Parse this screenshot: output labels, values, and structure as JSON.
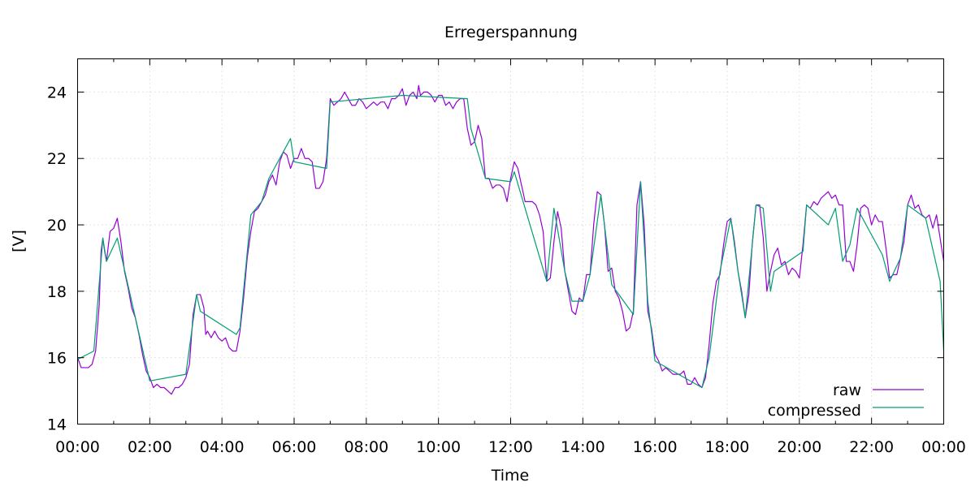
{
  "chart_data": {
    "type": "line",
    "title": "Erregerspannung",
    "xlabel": "Time",
    "ylabel": "[V]",
    "xlim": [
      0,
      24
    ],
    "ylim": [
      14,
      25
    ],
    "x_ticks": [
      {
        "value": 0,
        "label": "00:00"
      },
      {
        "value": 2,
        "label": "02:00"
      },
      {
        "value": 4,
        "label": "04:00"
      },
      {
        "value": 6,
        "label": "06:00"
      },
      {
        "value": 8,
        "label": "08:00"
      },
      {
        "value": 10,
        "label": "10:00"
      },
      {
        "value": 12,
        "label": "12:00"
      },
      {
        "value": 14,
        "label": "14:00"
      },
      {
        "value": 16,
        "label": "16:00"
      },
      {
        "value": 18,
        "label": "18:00"
      },
      {
        "value": 20,
        "label": "20:00"
      },
      {
        "value": 22,
        "label": "22:00"
      },
      {
        "value": 24,
        "label": "00:00"
      }
    ],
    "y_ticks": [
      {
        "value": 14,
        "label": "14"
      },
      {
        "value": 16,
        "label": "16"
      },
      {
        "value": 18,
        "label": "18"
      },
      {
        "value": 20,
        "label": "20"
      },
      {
        "value": 22,
        "label": "22"
      },
      {
        "value": 24,
        "label": "24"
      }
    ],
    "grid": true,
    "legend_position": "bottom-right",
    "series": [
      {
        "name": "raw",
        "color": "#9400d3",
        "points": [
          [
            0.0,
            16.0
          ],
          [
            0.1,
            15.7
          ],
          [
            0.2,
            15.7
          ],
          [
            0.3,
            15.7
          ],
          [
            0.4,
            15.8
          ],
          [
            0.5,
            16.2
          ],
          [
            0.6,
            17.6
          ],
          [
            0.65,
            19.2
          ],
          [
            0.7,
            19.6
          ],
          [
            0.75,
            19.2
          ],
          [
            0.8,
            18.9
          ],
          [
            0.9,
            19.8
          ],
          [
            1.0,
            19.9
          ],
          [
            1.1,
            20.2
          ],
          [
            1.2,
            19.5
          ],
          [
            1.3,
            18.6
          ],
          [
            1.4,
            18.1
          ],
          [
            1.5,
            17.5
          ],
          [
            1.6,
            17.2
          ],
          [
            1.7,
            16.7
          ],
          [
            1.8,
            16.1
          ],
          [
            1.9,
            15.6
          ],
          [
            2.0,
            15.4
          ],
          [
            2.1,
            15.1
          ],
          [
            2.2,
            15.2
          ],
          [
            2.3,
            15.1
          ],
          [
            2.4,
            15.1
          ],
          [
            2.5,
            15.0
          ],
          [
            2.6,
            14.9
          ],
          [
            2.7,
            15.1
          ],
          [
            2.8,
            15.1
          ],
          [
            2.9,
            15.2
          ],
          [
            3.0,
            15.4
          ],
          [
            3.1,
            15.8
          ],
          [
            3.2,
            17.3
          ],
          [
            3.3,
            17.9
          ],
          [
            3.4,
            17.9
          ],
          [
            3.5,
            17.5
          ],
          [
            3.55,
            16.7
          ],
          [
            3.6,
            16.8
          ],
          [
            3.7,
            16.6
          ],
          [
            3.8,
            16.8
          ],
          [
            3.9,
            16.6
          ],
          [
            4.0,
            16.5
          ],
          [
            4.1,
            16.6
          ],
          [
            4.2,
            16.3
          ],
          [
            4.3,
            16.2
          ],
          [
            4.4,
            16.2
          ],
          [
            4.5,
            16.8
          ],
          [
            4.6,
            17.8
          ],
          [
            4.7,
            19.0
          ],
          [
            4.8,
            19.8
          ],
          [
            4.9,
            20.4
          ],
          [
            5.0,
            20.5
          ],
          [
            5.1,
            20.7
          ],
          [
            5.2,
            20.9
          ],
          [
            5.3,
            21.3
          ],
          [
            5.4,
            21.5
          ],
          [
            5.5,
            21.2
          ],
          [
            5.6,
            21.9
          ],
          [
            5.7,
            22.2
          ],
          [
            5.8,
            22.1
          ],
          [
            5.9,
            21.7
          ],
          [
            6.0,
            22.0
          ],
          [
            6.1,
            22.0
          ],
          [
            6.2,
            22.3
          ],
          [
            6.3,
            22.0
          ],
          [
            6.4,
            22.0
          ],
          [
            6.5,
            21.9
          ],
          [
            6.6,
            21.1
          ],
          [
            6.7,
            21.1
          ],
          [
            6.8,
            21.3
          ],
          [
            6.9,
            22.0
          ],
          [
            7.0,
            23.8
          ],
          [
            7.1,
            23.6
          ],
          [
            7.2,
            23.7
          ],
          [
            7.3,
            23.8
          ],
          [
            7.4,
            24.0
          ],
          [
            7.5,
            23.8
          ],
          [
            7.6,
            23.6
          ],
          [
            7.7,
            23.6
          ],
          [
            7.8,
            23.8
          ],
          [
            7.9,
            23.7
          ],
          [
            8.0,
            23.5
          ],
          [
            8.1,
            23.6
          ],
          [
            8.2,
            23.7
          ],
          [
            8.3,
            23.6
          ],
          [
            8.4,
            23.7
          ],
          [
            8.5,
            23.7
          ],
          [
            8.6,
            23.5
          ],
          [
            8.7,
            23.8
          ],
          [
            8.8,
            23.8
          ],
          [
            8.9,
            23.9
          ],
          [
            9.0,
            24.1
          ],
          [
            9.1,
            23.6
          ],
          [
            9.2,
            23.9
          ],
          [
            9.3,
            24.0
          ],
          [
            9.4,
            23.8
          ],
          [
            9.45,
            24.2
          ],
          [
            9.5,
            23.9
          ],
          [
            9.6,
            24.0
          ],
          [
            9.7,
            24.0
          ],
          [
            9.8,
            23.9
          ],
          [
            9.9,
            23.7
          ],
          [
            10.0,
            23.9
          ],
          [
            10.1,
            23.9
          ],
          [
            10.2,
            23.6
          ],
          [
            10.3,
            23.7
          ],
          [
            10.4,
            23.5
          ],
          [
            10.5,
            23.7
          ],
          [
            10.6,
            23.8
          ],
          [
            10.7,
            23.8
          ],
          [
            10.8,
            22.9
          ],
          [
            10.9,
            22.4
          ],
          [
            11.0,
            22.5
          ],
          [
            11.1,
            23.0
          ],
          [
            11.2,
            22.6
          ],
          [
            11.3,
            21.4
          ],
          [
            11.4,
            21.4
          ],
          [
            11.5,
            21.1
          ],
          [
            11.6,
            21.2
          ],
          [
            11.7,
            21.2
          ],
          [
            11.8,
            21.1
          ],
          [
            11.9,
            20.7
          ],
          [
            12.0,
            21.4
          ],
          [
            12.1,
            21.9
          ],
          [
            12.2,
            21.7
          ],
          [
            12.3,
            21.2
          ],
          [
            12.4,
            20.7
          ],
          [
            12.5,
            20.7
          ],
          [
            12.6,
            20.7
          ],
          [
            12.7,
            20.6
          ],
          [
            12.8,
            20.3
          ],
          [
            12.9,
            19.8
          ],
          [
            13.0,
            18.3
          ],
          [
            13.1,
            18.4
          ],
          [
            13.2,
            19.5
          ],
          [
            13.3,
            20.4
          ],
          [
            13.4,
            19.9
          ],
          [
            13.5,
            18.6
          ],
          [
            13.6,
            18.0
          ],
          [
            13.7,
            17.4
          ],
          [
            13.8,
            17.3
          ],
          [
            13.9,
            17.8
          ],
          [
            14.0,
            17.7
          ],
          [
            14.1,
            18.5
          ],
          [
            14.2,
            18.5
          ],
          [
            14.3,
            20.0
          ],
          [
            14.4,
            21.0
          ],
          [
            14.5,
            20.9
          ],
          [
            14.6,
            20.0
          ],
          [
            14.7,
            18.6
          ],
          [
            14.8,
            18.7
          ],
          [
            14.9,
            18.0
          ],
          [
            15.0,
            17.8
          ],
          [
            15.1,
            17.4
          ],
          [
            15.2,
            16.8
          ],
          [
            15.3,
            16.9
          ],
          [
            15.4,
            17.4
          ],
          [
            15.5,
            20.6
          ],
          [
            15.6,
            21.3
          ],
          [
            15.7,
            20.0
          ],
          [
            15.8,
            17.4
          ],
          [
            15.9,
            16.9
          ],
          [
            16.0,
            16.1
          ],
          [
            16.1,
            15.9
          ],
          [
            16.2,
            15.6
          ],
          [
            16.3,
            15.7
          ],
          [
            16.4,
            15.6
          ],
          [
            16.5,
            15.5
          ],
          [
            16.6,
            15.5
          ],
          [
            16.7,
            15.5
          ],
          [
            16.8,
            15.6
          ],
          [
            16.9,
            15.2
          ],
          [
            17.0,
            15.2
          ],
          [
            17.1,
            15.4
          ],
          [
            17.2,
            15.2
          ],
          [
            17.3,
            15.1
          ],
          [
            17.4,
            15.4
          ],
          [
            17.5,
            16.4
          ],
          [
            17.6,
            17.6
          ],
          [
            17.7,
            18.3
          ],
          [
            17.8,
            18.5
          ],
          [
            17.9,
            19.4
          ],
          [
            18.0,
            20.1
          ],
          [
            18.1,
            20.2
          ],
          [
            18.2,
            19.5
          ],
          [
            18.3,
            18.6
          ],
          [
            18.4,
            18.0
          ],
          [
            18.5,
            17.2
          ],
          [
            18.6,
            17.9
          ],
          [
            18.7,
            19.5
          ],
          [
            18.8,
            20.6
          ],
          [
            18.9,
            20.6
          ],
          [
            19.0,
            19.6
          ],
          [
            19.1,
            18.0
          ],
          [
            19.2,
            18.6
          ],
          [
            19.3,
            19.1
          ],
          [
            19.4,
            19.3
          ],
          [
            19.5,
            18.8
          ],
          [
            19.6,
            18.9
          ],
          [
            19.7,
            18.5
          ],
          [
            19.8,
            18.7
          ],
          [
            19.9,
            18.6
          ],
          [
            20.0,
            18.4
          ],
          [
            20.1,
            19.4
          ],
          [
            20.2,
            20.6
          ],
          [
            20.3,
            20.5
          ],
          [
            20.4,
            20.7
          ],
          [
            20.5,
            20.6
          ],
          [
            20.6,
            20.8
          ],
          [
            20.7,
            20.9
          ],
          [
            20.8,
            21.0
          ],
          [
            20.9,
            20.8
          ],
          [
            21.0,
            20.9
          ],
          [
            21.1,
            20.6
          ],
          [
            21.2,
            20.6
          ],
          [
            21.3,
            18.9
          ],
          [
            21.4,
            18.9
          ],
          [
            21.5,
            18.6
          ],
          [
            21.6,
            19.4
          ],
          [
            21.7,
            20.5
          ],
          [
            21.8,
            20.6
          ],
          [
            21.9,
            20.5
          ],
          [
            22.0,
            20.0
          ],
          [
            22.1,
            20.3
          ],
          [
            22.2,
            20.1
          ],
          [
            22.3,
            20.1
          ],
          [
            22.4,
            19.3
          ],
          [
            22.5,
            18.4
          ],
          [
            22.6,
            18.5
          ],
          [
            22.7,
            18.5
          ],
          [
            22.8,
            19.0
          ],
          [
            22.9,
            19.5
          ],
          [
            23.0,
            20.6
          ],
          [
            23.1,
            20.9
          ],
          [
            23.2,
            20.5
          ],
          [
            23.3,
            20.6
          ],
          [
            23.4,
            20.3
          ],
          [
            23.5,
            20.2
          ],
          [
            23.6,
            20.3
          ],
          [
            23.7,
            19.9
          ],
          [
            23.8,
            20.3
          ],
          [
            23.9,
            19.6
          ],
          [
            24.0,
            18.9
          ]
        ]
      },
      {
        "name": "compressed",
        "color": "#009e73",
        "points": [
          [
            0.0,
            15.95
          ],
          [
            0.45,
            16.2
          ],
          [
            0.7,
            19.6
          ],
          [
            0.8,
            18.9
          ],
          [
            1.1,
            19.6
          ],
          [
            2.0,
            15.3
          ],
          [
            3.0,
            15.5
          ],
          [
            3.3,
            17.9
          ],
          [
            3.4,
            17.4
          ],
          [
            4.4,
            16.7
          ],
          [
            4.5,
            16.9
          ],
          [
            4.8,
            20.3
          ],
          [
            5.1,
            20.7
          ],
          [
            5.3,
            21.4
          ],
          [
            5.9,
            22.6
          ],
          [
            6.0,
            21.9
          ],
          [
            6.9,
            21.7
          ],
          [
            7.0,
            23.7
          ],
          [
            9.0,
            23.9
          ],
          [
            10.8,
            23.8
          ],
          [
            10.9,
            22.9
          ],
          [
            11.3,
            21.4
          ],
          [
            12.0,
            21.3
          ],
          [
            12.1,
            21.6
          ],
          [
            13.0,
            18.3
          ],
          [
            13.2,
            20.5
          ],
          [
            13.5,
            18.6
          ],
          [
            13.7,
            17.7
          ],
          [
            14.0,
            17.7
          ],
          [
            14.2,
            18.5
          ],
          [
            14.5,
            20.9
          ],
          [
            14.8,
            18.2
          ],
          [
            15.4,
            17.3
          ],
          [
            15.6,
            21.3
          ],
          [
            15.8,
            17.7
          ],
          [
            16.0,
            15.9
          ],
          [
            17.3,
            15.1
          ],
          [
            17.5,
            16.0
          ],
          [
            17.8,
            18.6
          ],
          [
            18.1,
            20.2
          ],
          [
            18.3,
            18.6
          ],
          [
            18.5,
            17.2
          ],
          [
            18.8,
            20.6
          ],
          [
            19.0,
            20.5
          ],
          [
            19.2,
            18.0
          ],
          [
            19.3,
            18.6
          ],
          [
            20.1,
            19.2
          ],
          [
            20.2,
            20.6
          ],
          [
            20.8,
            20.0
          ],
          [
            21.0,
            20.5
          ],
          [
            21.2,
            18.9
          ],
          [
            21.4,
            19.4
          ],
          [
            21.6,
            20.5
          ],
          [
            22.3,
            19.1
          ],
          [
            22.5,
            18.3
          ],
          [
            22.8,
            19.0
          ],
          [
            23.0,
            20.6
          ],
          [
            23.5,
            20.2
          ],
          [
            23.9,
            18.3
          ],
          [
            24.0,
            16.2
          ]
        ]
      }
    ]
  }
}
